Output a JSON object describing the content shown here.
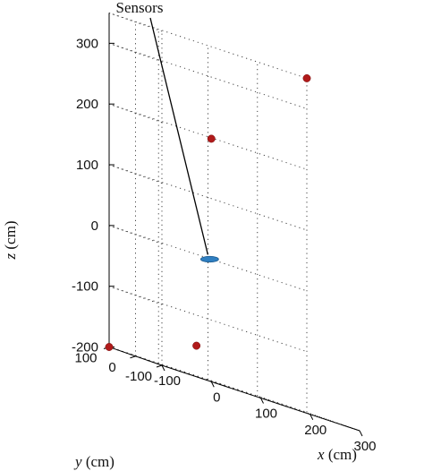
{
  "chart_data": {
    "type": "scatter3d",
    "axes": {
      "x": {
        "label_var": "x",
        "label_unit": " (cm)",
        "ticks": [
          -100,
          0,
          100,
          200,
          300
        ],
        "range": [
          -100,
          300
        ]
      },
      "y": {
        "label_var": "y",
        "label_unit": " (cm)",
        "ticks": [
          -100,
          0,
          100
        ],
        "range": [
          -100,
          100
        ]
      },
      "z": {
        "label_var": "z",
        "label_unit": " (cm)",
        "ticks": [
          -200,
          -100,
          0,
          100,
          200,
          300
        ],
        "range": [
          -200,
          350
        ]
      }
    },
    "grid": true,
    "series": [
      {
        "marker": "circle",
        "color": "#b01a1a",
        "points": [
          {
            "x": -100,
            "y": 100,
            "z": -200
          },
          {
            "x": 0,
            "y": -100,
            "z": 200
          },
          {
            "x": 300,
            "y": 100,
            "z": 350
          },
          {
            "x": 50,
            "y": 50,
            "z": -150
          }
        ]
      }
    ],
    "sensors": {
      "x": 50,
      "y": 0,
      "z": 0,
      "color": "#2f7fc1"
    },
    "annotations": [
      {
        "text": "Sensors",
        "target": "sensors"
      }
    ]
  }
}
